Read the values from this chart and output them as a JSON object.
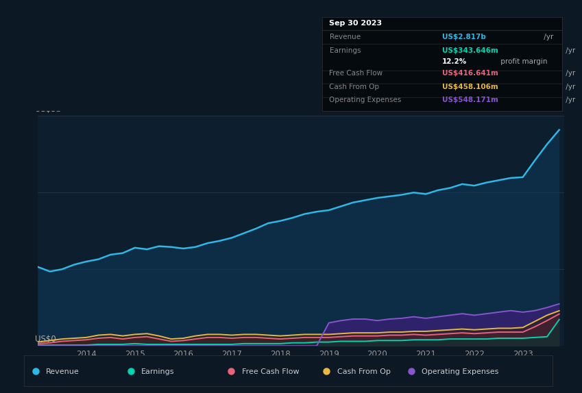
{
  "bg_color": "#0c1824",
  "plot_bg": "#0d1e2e",
  "ylabel_top": "US$3b",
  "ylabel_bottom": "US$0",
  "ylim": [
    0,
    3.0
  ],
  "revenue_color": "#2eb8e6",
  "earnings_color": "#00d4b0",
  "fcf_color": "#e8637a",
  "cashfromop_color": "#e8b842",
  "opex_color": "#8855cc",
  "legend_items": [
    {
      "label": "Revenue",
      "color": "#2eb8e6"
    },
    {
      "label": "Earnings",
      "color": "#00d4b0"
    },
    {
      "label": "Free Cash Flow",
      "color": "#e8637a"
    },
    {
      "label": "Cash From Op",
      "color": "#e8b842"
    },
    {
      "label": "Operating Expenses",
      "color": "#8855cc"
    }
  ],
  "info_box": {
    "date": "Sep 30 2023",
    "rows": [
      {
        "label": "Revenue",
        "value": "US$2.817b",
        "suffix": " /yr",
        "value_color": "#2eb8e6",
        "label_color": "#888888"
      },
      {
        "label": "Earnings",
        "value": "US$343.646m",
        "suffix": " /yr",
        "value_color": "#00d4b0",
        "label_color": "#888888"
      },
      {
        "label": "",
        "value": "12.2%",
        "suffix": " profit margin",
        "value_color": "#ffffff",
        "label_color": "#888888"
      },
      {
        "label": "Free Cash Flow",
        "value": "US$416.641m",
        "suffix": " /yr",
        "value_color": "#e8637a",
        "label_color": "#888888"
      },
      {
        "label": "Cash From Op",
        "value": "US$458.106m",
        "suffix": " /yr",
        "value_color": "#e8b842",
        "label_color": "#888888"
      },
      {
        "label": "Operating Expenses",
        "value": "US$548.171m",
        "suffix": " /yr",
        "value_color": "#8855cc",
        "label_color": "#888888"
      }
    ]
  },
  "revenue": [
    1.03,
    0.97,
    1.0,
    1.06,
    1.1,
    1.13,
    1.19,
    1.21,
    1.28,
    1.26,
    1.3,
    1.29,
    1.27,
    1.29,
    1.34,
    1.37,
    1.41,
    1.47,
    1.53,
    1.6,
    1.63,
    1.67,
    1.72,
    1.75,
    1.77,
    1.82,
    1.87,
    1.9,
    1.93,
    1.95,
    1.97,
    2.0,
    1.98,
    2.03,
    2.06,
    2.11,
    2.09,
    2.13,
    2.16,
    2.19,
    2.2,
    2.42,
    2.63,
    2.817
  ],
  "earnings": [
    0.01,
    0.01,
    0.01,
    0.01,
    0.01,
    0.02,
    0.02,
    0.02,
    0.03,
    0.02,
    0.02,
    0.02,
    0.02,
    0.02,
    0.02,
    0.02,
    0.02,
    0.03,
    0.03,
    0.03,
    0.03,
    0.04,
    0.04,
    0.05,
    0.05,
    0.06,
    0.06,
    0.06,
    0.07,
    0.07,
    0.07,
    0.08,
    0.08,
    0.08,
    0.09,
    0.09,
    0.09,
    0.09,
    0.1,
    0.1,
    0.1,
    0.11,
    0.12,
    0.343
  ],
  "cash_from_op": [
    0.05,
    0.07,
    0.09,
    0.1,
    0.11,
    0.14,
    0.15,
    0.13,
    0.15,
    0.16,
    0.13,
    0.09,
    0.1,
    0.13,
    0.15,
    0.15,
    0.14,
    0.15,
    0.15,
    0.14,
    0.13,
    0.14,
    0.15,
    0.15,
    0.15,
    0.16,
    0.17,
    0.17,
    0.17,
    0.18,
    0.18,
    0.19,
    0.19,
    0.2,
    0.21,
    0.22,
    0.21,
    0.22,
    0.23,
    0.23,
    0.24,
    0.32,
    0.4,
    0.458
  ],
  "free_cash_flow": [
    0.03,
    0.04,
    0.06,
    0.07,
    0.08,
    0.1,
    0.11,
    0.09,
    0.11,
    0.12,
    0.09,
    0.06,
    0.07,
    0.09,
    0.11,
    0.11,
    0.1,
    0.11,
    0.11,
    0.1,
    0.09,
    0.1,
    0.11,
    0.11,
    0.11,
    0.12,
    0.13,
    0.13,
    0.13,
    0.14,
    0.14,
    0.15,
    0.14,
    0.15,
    0.16,
    0.17,
    0.16,
    0.17,
    0.18,
    0.18,
    0.18,
    0.25,
    0.33,
    0.416
  ],
  "op_expenses": [
    0.0,
    0.0,
    0.0,
    0.0,
    0.0,
    0.0,
    0.0,
    0.0,
    0.0,
    0.0,
    0.0,
    0.0,
    0.0,
    0.0,
    0.0,
    0.0,
    0.0,
    0.0,
    0.0,
    0.0,
    0.0,
    0.0,
    0.0,
    0.0,
    0.3,
    0.33,
    0.35,
    0.35,
    0.33,
    0.35,
    0.36,
    0.38,
    0.36,
    0.38,
    0.4,
    0.42,
    0.4,
    0.42,
    0.44,
    0.46,
    0.44,
    0.46,
    0.5,
    0.548
  ]
}
